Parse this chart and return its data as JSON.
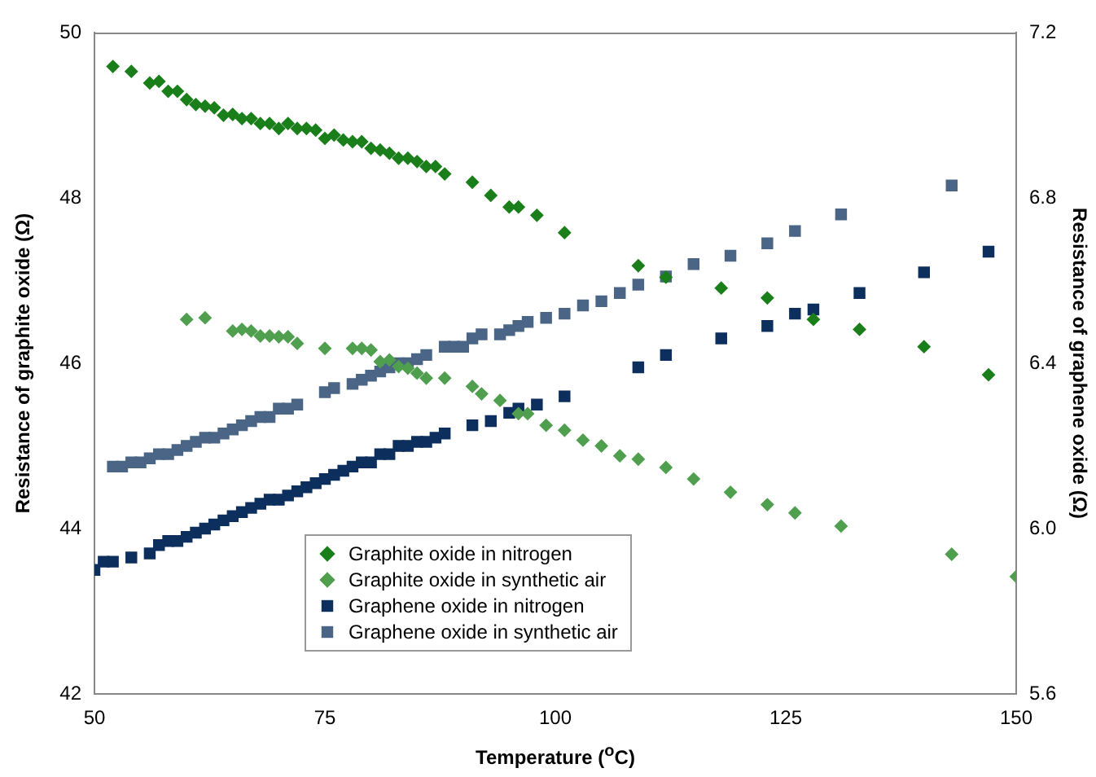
{
  "chart_data": {
    "type": "scatter",
    "xlabel": "Temperature ($^{o}$C)",
    "ylabel": "Resistance of graphite oxide (Ω)",
    "y2label": "Resistance of graphene oxide (Ω)",
    "xlim": [
      50,
      150
    ],
    "xticks": [
      50,
      75,
      100,
      125,
      150
    ],
    "ylim": [
      42,
      50
    ],
    "yticks": [
      42,
      44,
      46,
      48,
      50
    ],
    "y2lim": [
      5.6,
      7.2
    ],
    "y2ticks": [
      {
        "value": 5.6,
        "label": "5.6"
      },
      {
        "value": 6.0,
        "label": "6.0"
      },
      {
        "value": 6.4,
        "label": "6.4"
      },
      {
        "value": 6.8,
        "label": "6.8"
      },
      {
        "value": 7.2,
        "label": "7.2"
      }
    ],
    "grid": false,
    "legend": "bottom left",
    "series": [
      {
        "name": "Graphite oxide in nitrogen",
        "color": "#1a7f1a",
        "marker": "diamond",
        "axis": "y",
        "x": [
          52,
          54,
          56,
          57,
          58,
          59,
          60,
          61,
          62,
          63,
          64,
          65,
          66,
          67,
          68,
          69,
          70,
          71,
          72,
          73,
          74,
          75,
          76,
          77,
          78,
          79,
          80,
          81,
          82,
          83,
          84,
          85,
          86,
          87,
          88,
          91,
          93,
          95,
          96,
          98,
          101,
          109,
          112,
          118,
          123,
          128,
          133,
          140,
          147
        ],
        "values": [
          49.59,
          49.53,
          49.39,
          49.41,
          49.29,
          49.29,
          49.19,
          49.13,
          49.11,
          49.09,
          49.0,
          49.01,
          48.96,
          48.96,
          48.9,
          48.9,
          48.84,
          48.9,
          48.84,
          48.84,
          48.82,
          48.72,
          48.76,
          48.7,
          48.68,
          48.68,
          48.6,
          48.58,
          48.54,
          48.48,
          48.48,
          48.44,
          48.38,
          48.38,
          48.29,
          48.19,
          48.03,
          47.89,
          47.89,
          47.79,
          47.58,
          47.18,
          47.04,
          46.91,
          46.79,
          46.53,
          46.41,
          46.2,
          45.86
        ]
      },
      {
        "name": "Graphite oxide in synthetic air",
        "color": "#4f9f4f",
        "marker": "diamond",
        "axis": "y",
        "x": [
          60,
          62,
          65,
          66,
          67,
          68,
          69,
          70,
          71,
          72,
          75,
          78,
          79,
          80,
          81,
          82,
          83,
          84,
          85,
          86,
          88,
          91,
          92,
          94,
          96,
          97,
          99,
          101,
          103,
          105,
          107,
          109,
          112,
          115,
          119,
          123,
          126,
          131,
          143,
          150
        ],
        "values": [
          46.53,
          46.55,
          46.39,
          46.41,
          46.39,
          46.33,
          46.33,
          46.32,
          46.32,
          46.24,
          46.18,
          46.18,
          46.18,
          46.16,
          46.02,
          46.04,
          45.96,
          45.94,
          45.88,
          45.82,
          45.82,
          45.72,
          45.63,
          45.55,
          45.39,
          45.39,
          45.25,
          45.19,
          45.07,
          45.0,
          44.88,
          44.84,
          44.74,
          44.6,
          44.44,
          44.29,
          44.19,
          44.03,
          43.69,
          43.42
        ]
      },
      {
        "name": "Graphene oxide in nitrogen",
        "color": "#0d2f5e",
        "marker": "square",
        "axis": "y2",
        "x": [
          50,
          51,
          52,
          54,
          56,
          57,
          58,
          59,
          60,
          61,
          62,
          63,
          64,
          65,
          66,
          67,
          68,
          69,
          70,
          71,
          72,
          73,
          74,
          75,
          76,
          77,
          78,
          79,
          80,
          81,
          82,
          83,
          84,
          85,
          86,
          87,
          88,
          91,
          93,
          95,
          96,
          98,
          101,
          109,
          112,
          118,
          123,
          126,
          128,
          133,
          140,
          147
        ],
        "values": [
          5.9,
          5.92,
          5.92,
          5.93,
          5.94,
          5.96,
          5.97,
          5.97,
          5.98,
          5.99,
          6.0,
          6.01,
          6.02,
          6.03,
          6.04,
          6.05,
          6.06,
          6.07,
          6.07,
          6.08,
          6.09,
          6.1,
          6.11,
          6.12,
          6.13,
          6.14,
          6.15,
          6.16,
          6.16,
          6.18,
          6.18,
          6.2,
          6.2,
          6.21,
          6.21,
          6.22,
          6.23,
          6.25,
          6.26,
          6.28,
          6.29,
          6.3,
          6.32,
          6.39,
          6.42,
          6.46,
          6.49,
          6.52,
          6.53,
          6.57,
          6.62,
          6.67
        ]
      },
      {
        "name": "Graphene oxide in synthetic air",
        "color": "#4a6585",
        "marker": "square",
        "axis": "y2",
        "x": [
          52,
          53,
          54,
          55,
          56,
          57,
          58,
          59,
          60,
          61,
          62,
          63,
          64,
          65,
          66,
          67,
          68,
          69,
          70,
          71,
          72,
          75,
          76,
          78,
          79,
          80,
          81,
          82,
          83,
          84,
          85,
          86,
          88,
          89,
          90,
          91,
          92,
          94,
          95,
          96,
          97,
          99,
          101,
          103,
          105,
          107,
          109,
          112,
          115,
          119,
          123,
          126,
          131,
          143
        ],
        "values": [
          6.15,
          6.15,
          6.16,
          6.16,
          6.17,
          6.18,
          6.18,
          6.19,
          6.2,
          6.21,
          6.22,
          6.22,
          6.23,
          6.24,
          6.25,
          6.26,
          6.27,
          6.27,
          6.29,
          6.29,
          6.3,
          6.33,
          6.34,
          6.35,
          6.36,
          6.37,
          6.38,
          6.39,
          6.4,
          6.4,
          6.41,
          6.42,
          6.44,
          6.44,
          6.44,
          6.46,
          6.47,
          6.47,
          6.48,
          6.49,
          6.5,
          6.51,
          6.52,
          6.54,
          6.55,
          6.57,
          6.59,
          6.61,
          6.64,
          6.66,
          6.69,
          6.72,
          6.76,
          6.83
        ]
      }
    ]
  }
}
